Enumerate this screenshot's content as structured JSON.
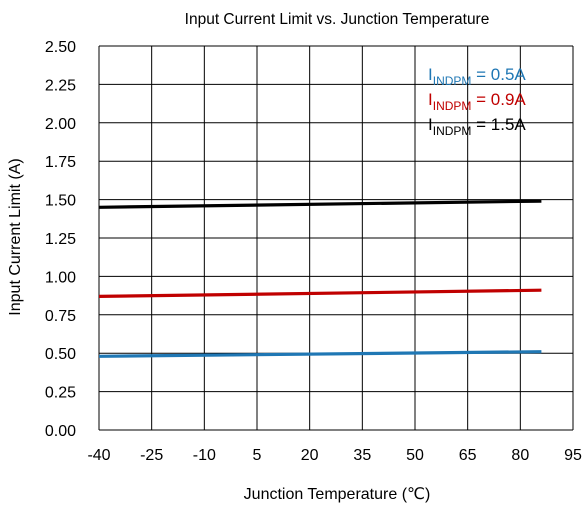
{
  "chart_data": {
    "type": "line",
    "title": "Input Current Limit vs. Junction Temperature",
    "xlabel": "Junction Temperature (℃)",
    "ylabel": "Input Current Limit (A)",
    "xlim": [
      -40,
      95
    ],
    "ylim": [
      0,
      2.5
    ],
    "xticks": [
      "-40",
      "-25",
      "-10",
      "5",
      "20",
      "35",
      "50",
      "65",
      "80",
      "95"
    ],
    "yticks": [
      "0.00",
      "0.25",
      "0.50",
      "0.75",
      "1.00",
      "1.25",
      "1.50",
      "1.75",
      "2.00",
      "2.25",
      "2.50"
    ],
    "grid": true,
    "legend_position": "top-right",
    "series": [
      {
        "name_main": "I",
        "name_sub": "INDPM",
        "name_suffix": " = 0.5A",
        "color": "#1f77b4",
        "x": [
          -40,
          86
        ],
        "y": [
          0.48,
          0.51
        ]
      },
      {
        "name_main": "I",
        "name_sub": "INDPM",
        "name_suffix": " = 0.9A",
        "color": "#c00000",
        "x": [
          -40,
          86
        ],
        "y": [
          0.87,
          0.91
        ]
      },
      {
        "name_main": "I",
        "name_sub": "INDPM",
        "name_suffix": " = 1.5A",
        "color": "#000000",
        "x": [
          -40,
          86
        ],
        "y": [
          1.45,
          1.49
        ]
      }
    ]
  }
}
